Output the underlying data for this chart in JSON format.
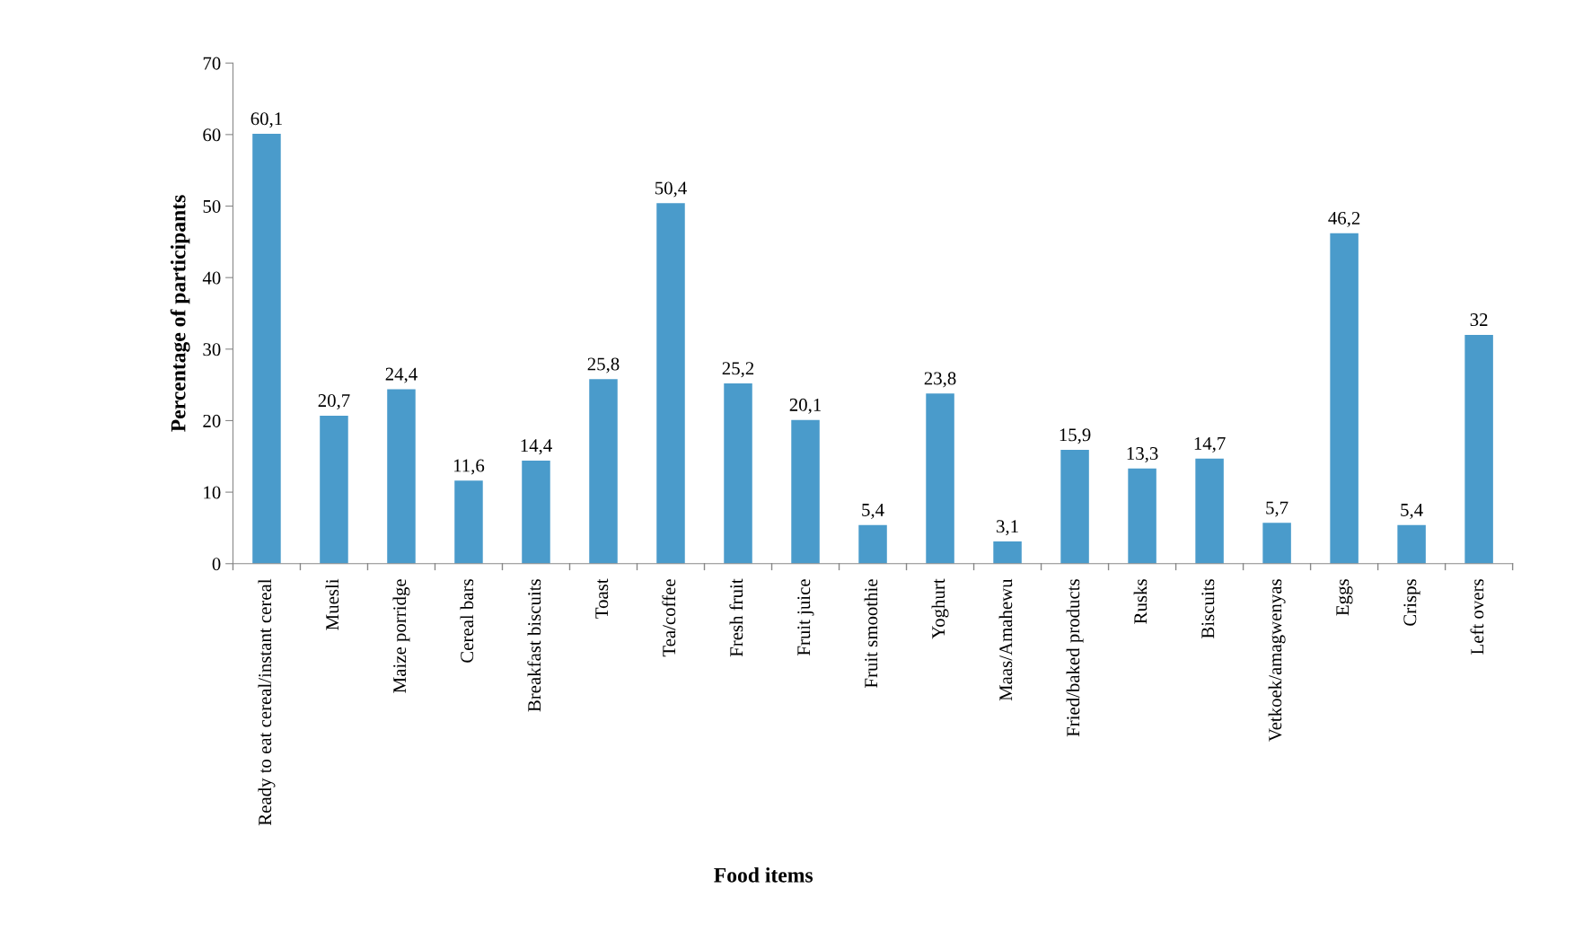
{
  "chart_data": {
    "type": "bar",
    "xlabel": "Food items",
    "ylabel": "Percentage of participants",
    "categories": [
      "Ready to eat cereal/instant cereal",
      "Muesli",
      "Maize porridge",
      "Cereal bars",
      "Breakfast biscuits",
      "Toast",
      "Tea/coffee",
      "Fresh fruit",
      "Fruit juice",
      "Fruit smoothie",
      "Yoghurt",
      "Maas/Amahewu",
      "Fried/baked products",
      "Rusks",
      "Biscuits",
      "Vetkoek/amagwenyas",
      "Eggs",
      "Crisps",
      "Left overs"
    ],
    "values": [
      60.1,
      20.7,
      24.4,
      11.6,
      14.4,
      25.8,
      50.4,
      25.2,
      20.1,
      5.4,
      23.8,
      3.1,
      15.9,
      13.3,
      14.7,
      5.7,
      46.2,
      5.4,
      32
    ],
    "value_labels": [
      "60,1",
      "20,7",
      "24,4",
      "11,6",
      "14,4",
      "25,8",
      "50,4",
      "25,2",
      "20,1",
      "5,4",
      "23,8",
      "3,1",
      "15,9",
      "13,3",
      "14,7",
      "5,7",
      "46,2",
      "5,4",
      "32"
    ],
    "color": "#4a9bcb",
    "ylim": [
      0,
      70
    ],
    "yticks": [
      0,
      10,
      20,
      30,
      40,
      50,
      60,
      70
    ],
    "grid": false,
    "legend": false
  }
}
